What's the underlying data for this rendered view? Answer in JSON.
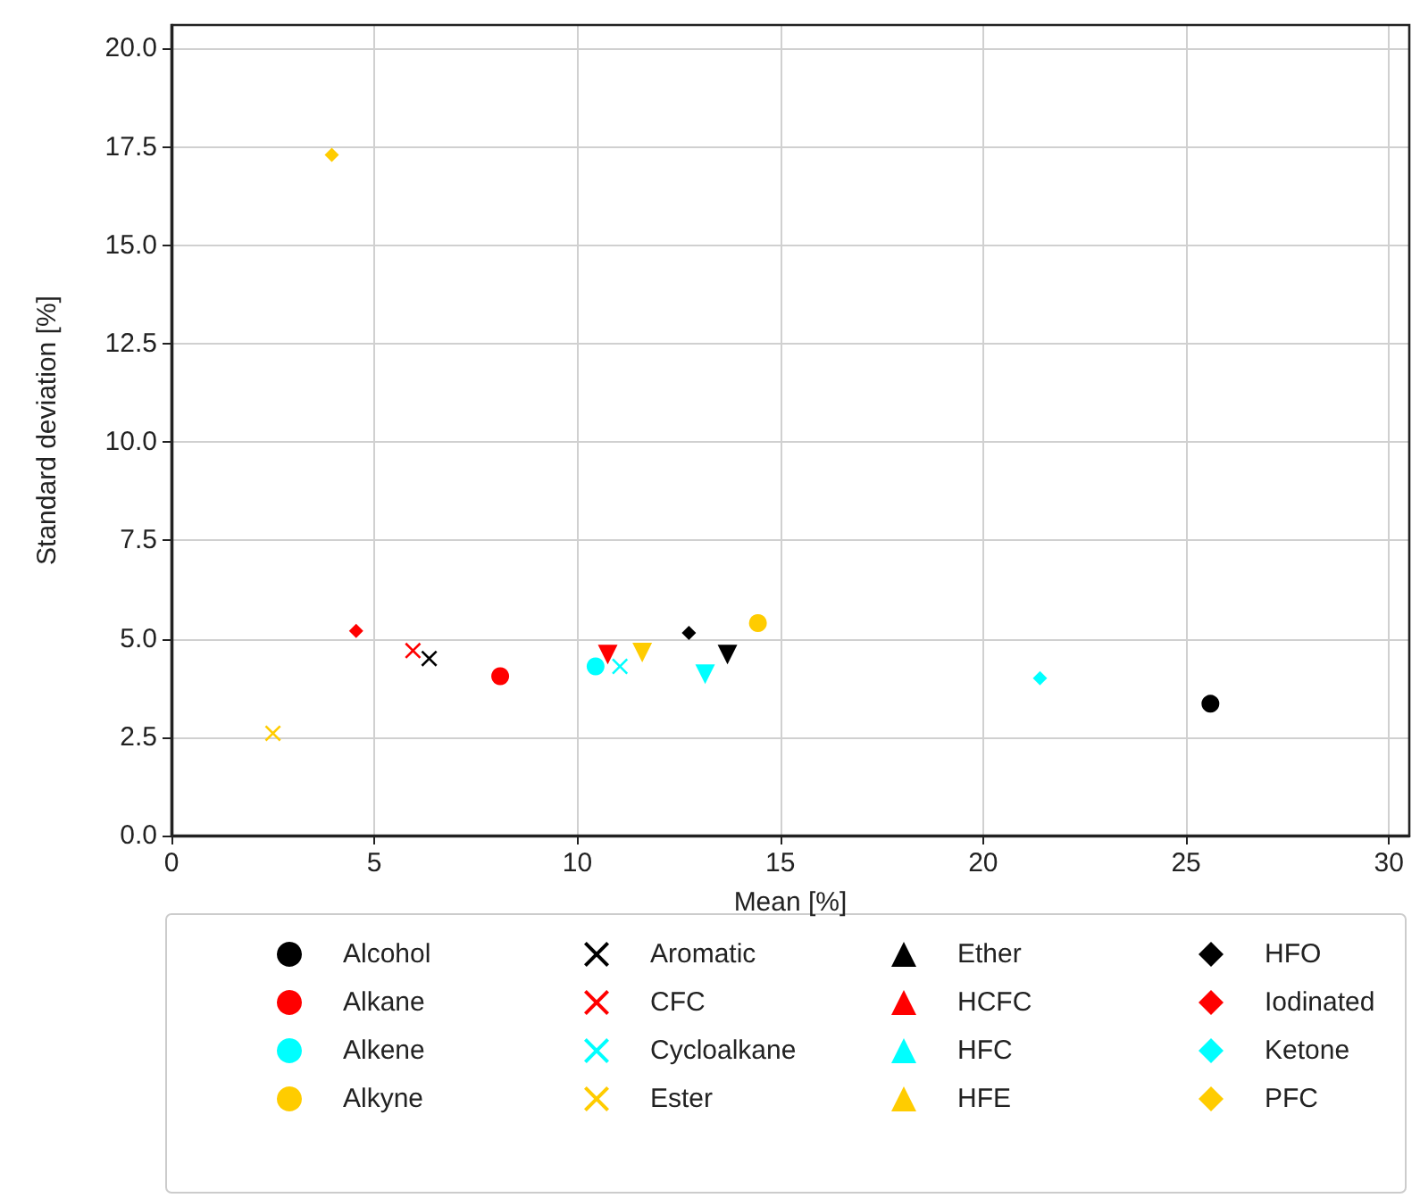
{
  "chart_data": {
    "type": "scatter",
    "xlabel": "Mean [%]",
    "ylabel": "Standard deviation [%]",
    "xlim": [
      0,
      30.5
    ],
    "xticks": [
      0,
      5,
      10,
      15,
      20,
      25,
      30
    ],
    "ylim": [
      0,
      20.6
    ],
    "yticks": [
      {
        "value": 0,
        "label": "0.0"
      },
      {
        "value": 2.5,
        "label": "2.5"
      },
      {
        "value": 5,
        "label": "5.0"
      },
      {
        "value": 7.5,
        "label": "7.5"
      },
      {
        "value": 10,
        "label": "10.0"
      },
      {
        "value": 12.5,
        "label": "12.5"
      },
      {
        "value": 15,
        "label": "15.0"
      },
      {
        "value": 17.5,
        "label": "17.5"
      },
      {
        "value": 20,
        "label": "20.0"
      }
    ],
    "grid": true,
    "legend": "bottom",
    "series": [
      {
        "name": "Alcohol",
        "color": "#000000",
        "marker": "circle",
        "x": [
          25.6
        ],
        "values": [
          3.35
        ]
      },
      {
        "name": "Alkane",
        "color": "#ff0000",
        "marker": "circle",
        "x": [
          8.1
        ],
        "values": [
          4.05
        ]
      },
      {
        "name": "Alkene",
        "color": "#00ffff",
        "marker": "circle",
        "x": [
          10.45
        ],
        "values": [
          4.3
        ]
      },
      {
        "name": "Alkyne",
        "color": "#ffcc00",
        "marker": "circle",
        "x": [
          14.45
        ],
        "values": [
          5.4
        ]
      },
      {
        "name": "Aromatic",
        "color": "#000000",
        "marker": "cross",
        "x": [
          6.35
        ],
        "values": [
          4.5
        ]
      },
      {
        "name": "CFC",
        "color": "#ff0000",
        "marker": "cross",
        "x": [
          5.95
        ],
        "values": [
          4.7
        ]
      },
      {
        "name": "Cycloalkane",
        "color": "#00ffff",
        "marker": "cross",
        "x": [
          11.05
        ],
        "values": [
          4.3
        ]
      },
      {
        "name": "Ester",
        "color": "#ffcc00",
        "marker": "cross",
        "x": [
          2.5
        ],
        "values": [
          2.6
        ]
      },
      {
        "name": "Ether",
        "color": "#000000",
        "marker": "triangle_down",
        "x": [
          13.7
        ],
        "values": [
          4.6
        ]
      },
      {
        "name": "HCFC",
        "color": "#ff0000",
        "marker": "triangle_down",
        "x": [
          10.75
        ],
        "values": [
          4.6
        ]
      },
      {
        "name": "HFC",
        "color": "#00ffff",
        "marker": "triangle_down",
        "x": [
          13.15
        ],
        "values": [
          4.1
        ]
      },
      {
        "name": "HFE",
        "color": "#ffcc00",
        "marker": "triangle_down",
        "x": [
          11.6
        ],
        "values": [
          4.65
        ]
      },
      {
        "name": "HFO",
        "color": "#000000",
        "marker": "diamond",
        "x": [
          12.75
        ],
        "values": [
          5.15
        ]
      },
      {
        "name": "Iodinated",
        "color": "#ff0000",
        "marker": "diamond",
        "x": [
          4.55
        ],
        "values": [
          5.2
        ]
      },
      {
        "name": "Ketone",
        "color": "#00ffff",
        "marker": "diamond",
        "x": [
          21.4
        ],
        "values": [
          4.0
        ]
      },
      {
        "name": "PFC",
        "color": "#ffcc00",
        "marker": "diamond",
        "x": [
          3.95
        ],
        "values": [
          17.3
        ]
      }
    ]
  }
}
